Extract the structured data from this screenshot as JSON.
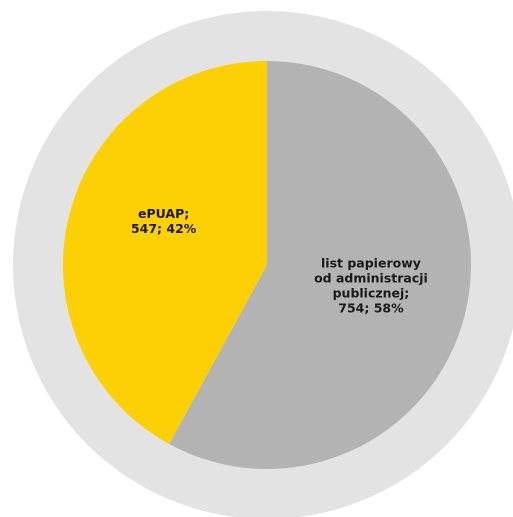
{
  "chart_data": {
    "type": "pie",
    "slices": [
      {
        "label_lines": [
          "list papierowy",
          "od administracji",
          "publicznej;",
          "754; 58%"
        ],
        "value": 754,
        "percent": 58,
        "color": "#b3b3b3"
      },
      {
        "label_lines": [
          "ePUAP;",
          "547; 42%"
        ],
        "value": 547,
        "percent": 42,
        "color": "#fcd004"
      }
    ],
    "start_angle_deg": 0,
    "direction": "clockwise",
    "ring_color": "#e3e3e3",
    "title": "",
    "legend": "none"
  }
}
